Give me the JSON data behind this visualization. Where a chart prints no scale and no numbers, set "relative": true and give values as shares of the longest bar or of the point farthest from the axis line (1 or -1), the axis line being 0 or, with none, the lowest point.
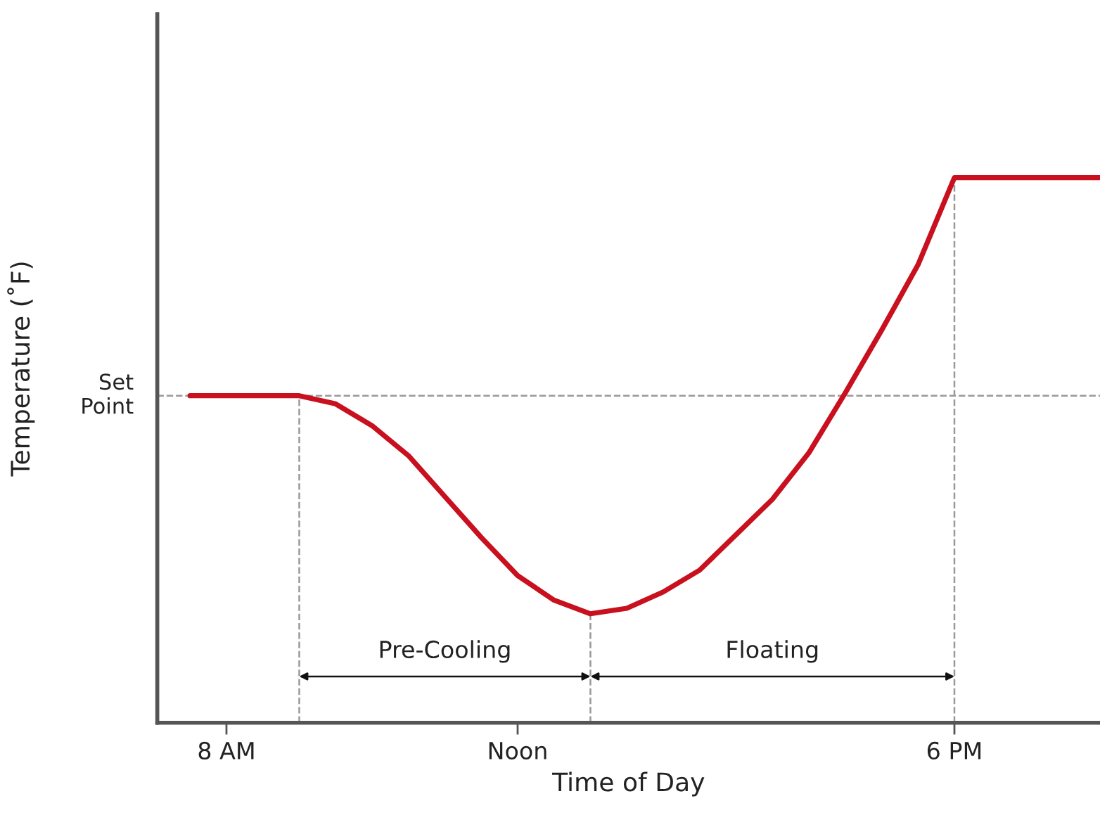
{
  "chart_data": {
    "type": "line",
    "relative": true,
    "xlabel": "Time of Day",
    "ylabel": "Temperature (˚F)",
    "categories": [
      null,
      "8 AM",
      null,
      null,
      null,
      null,
      null,
      null,
      null,
      "Noon",
      null,
      null,
      null,
      null,
      null,
      null,
      null,
      null,
      null,
      null,
      null,
      "6 PM",
      null,
      null,
      null,
      null
    ],
    "series": [
      {
        "color": "#c8101e",
        "values": [
          0.6,
          0.6,
          0.6,
          0.6,
          0.585,
          0.545,
          0.49,
          0.415,
          0.34,
          0.27,
          0.225,
          0.2,
          0.21,
          0.24,
          0.28,
          0.345,
          0.41,
          0.495,
          0.605,
          0.72,
          0.84,
          1.0,
          1.0,
          1.0,
          1.0,
          1.0
        ]
      }
    ],
    "ref_lines": [
      {
        "axis": "y",
        "value": 0.6,
        "label": "Set\nPoint",
        "color": "#999999",
        "line_style": "dashed"
      },
      {
        "axis": "x",
        "value": "6 PM",
        "label": null,
        "color": "#999999",
        "line_style": "dashed"
      }
    ],
    "annotations": [
      "Pre-Cooling",
      "Floating"
    ],
    "grid": false,
    "legend": false,
    "marker": "none",
    "line_style": "solid"
  }
}
